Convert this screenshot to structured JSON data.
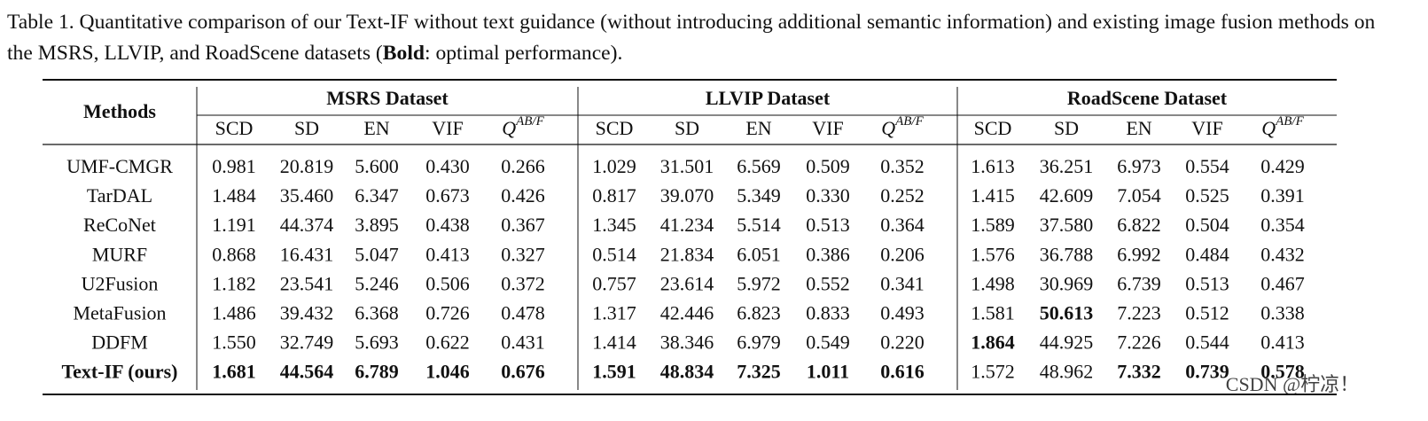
{
  "caption": {
    "before": "Table 1. Quantitative comparison of our Text-IF without text guidance (without introducing additional semantic information) and existing image fusion methods on the MSRS, LLVIP, and RoadScene datasets (",
    "bold": "Bold",
    "after": ": optimal performance)."
  },
  "table": {
    "method_header": "Methods",
    "groups": [
      "MSRS Dataset",
      "LLVIP Dataset",
      "RoadScene Dataset"
    ],
    "metrics": [
      "SCD",
      "SD",
      "EN",
      "VIF",
      {
        "base": "Q",
        "sup": "AB/F"
      }
    ],
    "rows": [
      {
        "method": "UMF-CMGR",
        "values": [
          "0.981",
          "20.819",
          "5.600",
          "0.430",
          "0.266",
          "1.029",
          "31.501",
          "6.569",
          "0.509",
          "0.352",
          "1.613",
          "36.251",
          "6.973",
          "0.554",
          "0.429"
        ],
        "bold": []
      },
      {
        "method": "TarDAL",
        "values": [
          "1.484",
          "35.460",
          "6.347",
          "0.673",
          "0.426",
          "0.817",
          "39.070",
          "5.349",
          "0.330",
          "0.252",
          "1.415",
          "42.609",
          "7.054",
          "0.525",
          "0.391"
        ],
        "bold": []
      },
      {
        "method": "ReCoNet",
        "values": [
          "1.191",
          "44.374",
          "3.895",
          "0.438",
          "0.367",
          "1.345",
          "41.234",
          "5.514",
          "0.513",
          "0.364",
          "1.589",
          "37.580",
          "6.822",
          "0.504",
          "0.354"
        ],
        "bold": []
      },
      {
        "method": "MURF",
        "values": [
          "0.868",
          "16.431",
          "5.047",
          "0.413",
          "0.327",
          "0.514",
          "21.834",
          "6.051",
          "0.386",
          "0.206",
          "1.576",
          "36.788",
          "6.992",
          "0.484",
          "0.432"
        ],
        "bold": []
      },
      {
        "method": "U2Fusion",
        "values": [
          "1.182",
          "23.541",
          "5.246",
          "0.506",
          "0.372",
          "0.757",
          "23.614",
          "5.972",
          "0.552",
          "0.341",
          "1.498",
          "30.969",
          "6.739",
          "0.513",
          "0.467"
        ],
        "bold": []
      },
      {
        "method": "MetaFusion",
        "values": [
          "1.486",
          "39.432",
          "6.368",
          "0.726",
          "0.478",
          "1.317",
          "42.446",
          "6.823",
          "0.833",
          "0.493",
          "1.581",
          "50.613",
          "7.223",
          "0.512",
          "0.338"
        ],
        "bold": [
          11
        ]
      },
      {
        "method": "DDFM",
        "values": [
          "1.550",
          "32.749",
          "5.693",
          "0.622",
          "0.431",
          "1.414",
          "38.346",
          "6.979",
          "0.549",
          "0.220",
          "1.864",
          "44.925",
          "7.226",
          "0.544",
          "0.413"
        ],
        "bold": [
          10
        ]
      },
      {
        "method": "Text-IF (ours)",
        "method_bold": true,
        "values": [
          "1.681",
          "44.564",
          "6.789",
          "1.046",
          "0.676",
          "1.591",
          "48.834",
          "7.325",
          "1.011",
          "0.616",
          "1.572",
          "48.962",
          "7.332",
          "0.739",
          "0.578"
        ],
        "bold": [
          0,
          1,
          2,
          3,
          4,
          5,
          6,
          7,
          8,
          9,
          12,
          13,
          14
        ]
      }
    ]
  },
  "watermark": "CSDN @柠凉！"
}
